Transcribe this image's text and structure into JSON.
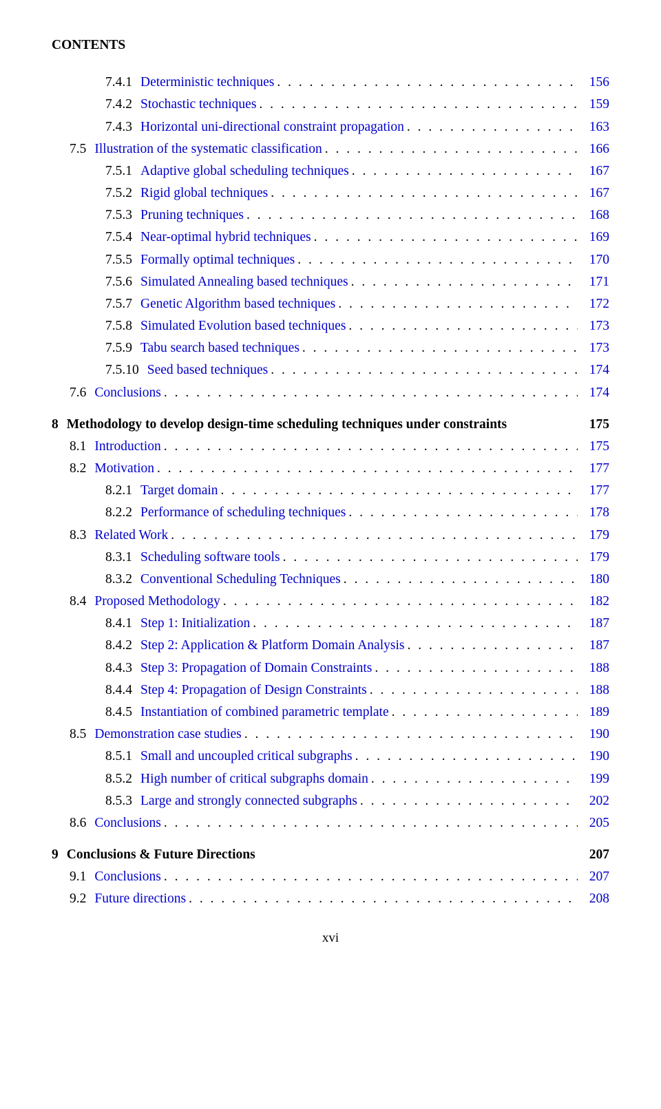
{
  "header": "CONTENTS",
  "link_color": "#0000cc",
  "text_color": "#000000",
  "background_color": "#ffffff",
  "font_family": "Times New Roman",
  "base_fontsize": 19.5,
  "page_number": "xvi",
  "entries": [
    {
      "level": "sub",
      "num": "7.4.1",
      "title": "Deterministic techniques",
      "page": "156",
      "link": true,
      "dots": true,
      "chapter": false
    },
    {
      "level": "sub",
      "num": "7.4.2",
      "title": "Stochastic techniques",
      "page": "159",
      "link": true,
      "dots": true,
      "chapter": false
    },
    {
      "level": "sub",
      "num": "7.4.3",
      "title": "Horizontal uni-directional constraint propagation",
      "page": "163",
      "link": true,
      "dots": true,
      "chapter": false
    },
    {
      "level": "sec",
      "num": "7.5",
      "title": "Illustration of the systematic classification",
      "page": "166",
      "link": true,
      "dots": true,
      "chapter": false
    },
    {
      "level": "sub",
      "num": "7.5.1",
      "title": "Adaptive global scheduling techniques",
      "page": "167",
      "link": true,
      "dots": true,
      "chapter": false
    },
    {
      "level": "sub",
      "num": "7.5.2",
      "title": "Rigid global techniques",
      "page": "167",
      "link": true,
      "dots": true,
      "chapter": false
    },
    {
      "level": "sub",
      "num": "7.5.3",
      "title": "Pruning techniques",
      "page": "168",
      "link": true,
      "dots": true,
      "chapter": false
    },
    {
      "level": "sub",
      "num": "7.5.4",
      "title": "Near-optimal hybrid techniques",
      "page": "169",
      "link": true,
      "dots": true,
      "chapter": false
    },
    {
      "level": "sub",
      "num": "7.5.5",
      "title": "Formally optimal techniques",
      "page": "170",
      "link": true,
      "dots": true,
      "chapter": false
    },
    {
      "level": "sub",
      "num": "7.5.6",
      "title": "Simulated Annealing based techniques",
      "page": "171",
      "link": true,
      "dots": true,
      "chapter": false
    },
    {
      "level": "sub",
      "num": "7.5.7",
      "title": "Genetic Algorithm based techniques",
      "page": "172",
      "link": true,
      "dots": true,
      "chapter": false
    },
    {
      "level": "sub",
      "num": "7.5.8",
      "title": "Simulated Evolution based techniques",
      "page": "173",
      "link": true,
      "dots": true,
      "chapter": false
    },
    {
      "level": "sub",
      "num": "7.5.9",
      "title": "Tabu search based techniques",
      "page": "173",
      "link": true,
      "dots": true,
      "chapter": false
    },
    {
      "level": "sub",
      "num": "7.5.10",
      "title": "Seed based techniques",
      "page": "174",
      "link": true,
      "dots": true,
      "chapter": false
    },
    {
      "level": "sec",
      "num": "7.6",
      "title": "Conclusions",
      "page": "174",
      "link": true,
      "dots": true,
      "chapter": false
    },
    {
      "level": "ch",
      "num": "8",
      "title": "Methodology to develop design-time scheduling techniques under constraints",
      "page": "175",
      "link": false,
      "dots": false,
      "chapter": true
    },
    {
      "level": "sec",
      "num": "8.1",
      "title": "Introduction",
      "page": "175",
      "link": true,
      "dots": true,
      "chapter": false
    },
    {
      "level": "sec",
      "num": "8.2",
      "title": "Motivation",
      "page": "177",
      "link": true,
      "dots": true,
      "chapter": false
    },
    {
      "level": "sub",
      "num": "8.2.1",
      "title": "Target domain",
      "page": "177",
      "link": true,
      "dots": true,
      "chapter": false
    },
    {
      "level": "sub",
      "num": "8.2.2",
      "title": "Performance of scheduling techniques",
      "page": "178",
      "link": true,
      "dots": true,
      "chapter": false
    },
    {
      "level": "sec",
      "num": "8.3",
      "title": "Related Work",
      "page": "179",
      "link": true,
      "dots": true,
      "chapter": false
    },
    {
      "level": "sub",
      "num": "8.3.1",
      "title": "Scheduling software tools",
      "page": "179",
      "link": true,
      "dots": true,
      "chapter": false
    },
    {
      "level": "sub",
      "num": "8.3.2",
      "title": "Conventional Scheduling Techniques",
      "page": "180",
      "link": true,
      "dots": true,
      "chapter": false
    },
    {
      "level": "sec",
      "num": "8.4",
      "title": "Proposed Methodology",
      "page": "182",
      "link": true,
      "dots": true,
      "chapter": false
    },
    {
      "level": "sub",
      "num": "8.4.1",
      "title": "Step 1: Initialization",
      "page": "187",
      "link": true,
      "dots": true,
      "chapter": false
    },
    {
      "level": "sub",
      "num": "8.4.2",
      "title": "Step 2: Application & Platform Domain Analysis",
      "page": "187",
      "link": true,
      "dots": true,
      "chapter": false
    },
    {
      "level": "sub",
      "num": "8.4.3",
      "title": "Step 3: Propagation of Domain Constraints",
      "page": "188",
      "link": true,
      "dots": true,
      "chapter": false
    },
    {
      "level": "sub",
      "num": "8.4.4",
      "title": "Step 4: Propagation of Design Constraints",
      "page": "188",
      "link": true,
      "dots": true,
      "chapter": false
    },
    {
      "level": "sub",
      "num": "8.4.5",
      "title": "Instantiation of combined parametric template",
      "page": "189",
      "link": true,
      "dots": true,
      "chapter": false
    },
    {
      "level": "sec",
      "num": "8.5",
      "title": "Demonstration case studies",
      "page": "190",
      "link": true,
      "dots": true,
      "chapter": false
    },
    {
      "level": "sub",
      "num": "8.5.1",
      "title": "Small and uncoupled critical subgraphs",
      "page": "190",
      "link": true,
      "dots": true,
      "chapter": false
    },
    {
      "level": "sub",
      "num": "8.5.2",
      "title": "High number of critical subgraphs domain",
      "page": "199",
      "link": true,
      "dots": true,
      "chapter": false
    },
    {
      "level": "sub",
      "num": "8.5.3",
      "title": "Large and strongly connected subgraphs",
      "page": "202",
      "link": true,
      "dots": true,
      "chapter": false
    },
    {
      "level": "sec",
      "num": "8.6",
      "title": "Conclusions",
      "page": "205",
      "link": true,
      "dots": true,
      "chapter": false
    },
    {
      "level": "ch",
      "num": "9",
      "title": "Conclusions & Future Directions",
      "page": "207",
      "link": false,
      "dots": false,
      "chapter": true
    },
    {
      "level": "sec",
      "num": "9.1",
      "title": "Conclusions",
      "page": "207",
      "link": true,
      "dots": true,
      "chapter": false
    },
    {
      "level": "sec",
      "num": "9.2",
      "title": "Future directions",
      "page": "208",
      "link": true,
      "dots": true,
      "chapter": false
    }
  ]
}
